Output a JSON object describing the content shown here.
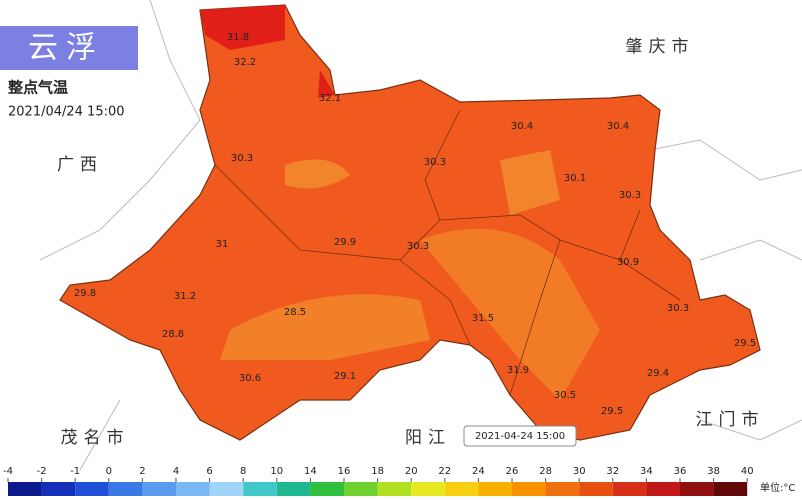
{
  "header": {
    "title": "云浮",
    "subtitle": "整点气温",
    "datetime": "2021/04/24 15:00"
  },
  "neighbors": [
    "广西",
    "肇庆市",
    "茂名市",
    "阳江",
    "江门市"
  ],
  "stations": [
    31.8,
    32.2,
    32.1,
    30.4,
    30.4,
    30.3,
    30.3,
    30.1,
    30.3,
    31,
    29.9,
    30.3,
    30.9,
    29.8,
    31.2,
    28.5,
    30.3,
    31.5,
    28.8,
    29.5,
    31.9,
    29.1,
    30.6,
    29.4,
    30.5,
    29.5
  ],
  "tooltip": "2021-04-24 15:00",
  "legend": {
    "ticks": [
      -4,
      -2,
      -1,
      0,
      2,
      4,
      6,
      8,
      10,
      14,
      16,
      18,
      20,
      22,
      24,
      26,
      28,
      30,
      32,
      34,
      36,
      38,
      40
    ],
    "colors": [
      "#0a1a8c",
      "#1530b8",
      "#2050d8",
      "#3a78e8",
      "#5a9af0",
      "#7ab8f5",
      "#a0d4f8",
      "#40c8c8",
      "#20b890",
      "#30c040",
      "#70d030",
      "#b0e020",
      "#e8e820",
      "#f8d010",
      "#f8b000",
      "#f89000",
      "#f07010",
      "#e85010",
      "#d83018",
      "#c01818",
      "#901010",
      "#600808"
    ],
    "unit": "单位:°C"
  }
}
